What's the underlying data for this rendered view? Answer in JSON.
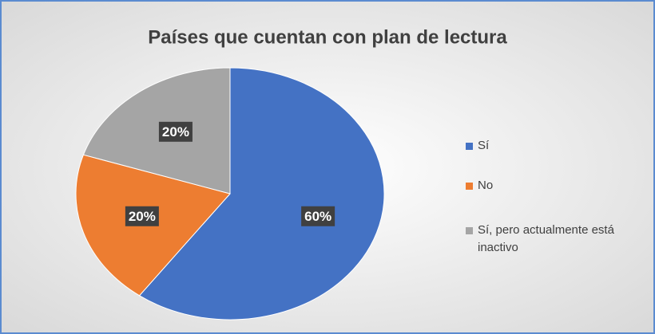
{
  "chart_data": {
    "type": "pie",
    "title": "Países que cuentan con plan de lectura",
    "categories": [
      "Sí",
      "No",
      "Sí, pero actualmente está inactivo"
    ],
    "values": [
      60,
      20,
      20
    ],
    "value_labels": [
      "60%",
      "20%",
      "20%"
    ],
    "colors": [
      "#4472c4",
      "#ed7d31",
      "#a5a5a5"
    ],
    "legend": "right"
  }
}
